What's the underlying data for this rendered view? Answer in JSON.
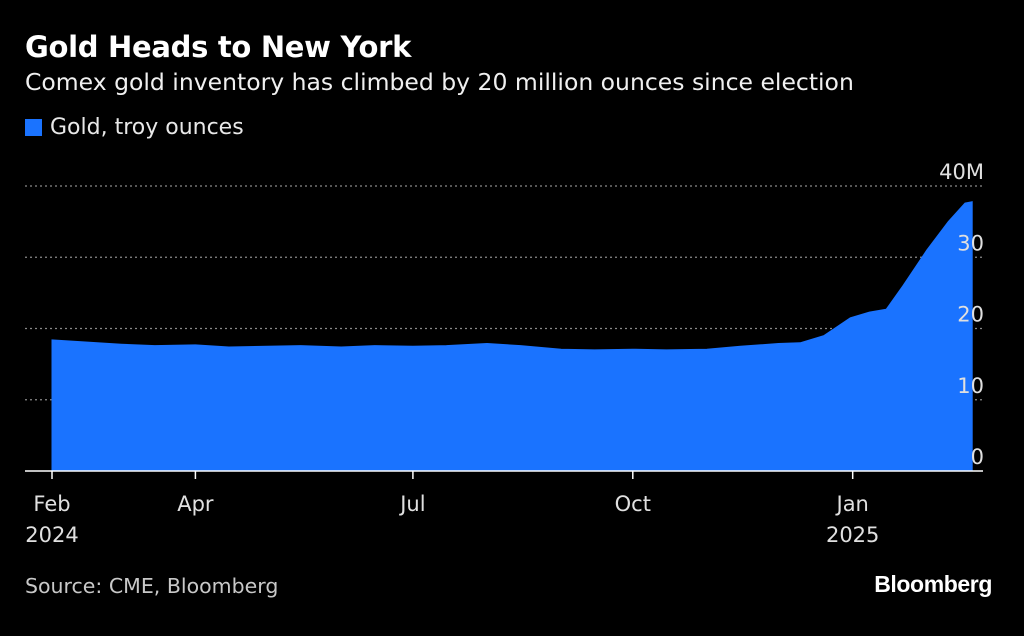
{
  "header": {
    "title": "Gold Heads to New York",
    "subtitle": "Comex gold inventory has climbed by 20 million ounces since election"
  },
  "footer": {
    "source": "Source: CME, Bloomberg",
    "brand": "Bloomberg"
  },
  "colors": {
    "background": "#000000",
    "series": "#1a73ff",
    "grid": "#8a8a8a",
    "text": "#ffffff",
    "muted_text": "#c8c8c8"
  },
  "chart_data": {
    "type": "area",
    "title": "Gold Heads to New York",
    "subtitle": "Comex gold inventory has climbed by 20 million ounces since election",
    "series": [
      {
        "name": "Gold, troy ounces",
        "color": "#1a73ff",
        "points": [
          {
            "date": "2024-02-01",
            "value": 18.4
          },
          {
            "date": "2024-02-15",
            "value": 18.1
          },
          {
            "date": "2024-03-01",
            "value": 17.8
          },
          {
            "date": "2024-03-15",
            "value": 17.6
          },
          {
            "date": "2024-04-01",
            "value": 17.7
          },
          {
            "date": "2024-04-15",
            "value": 17.4
          },
          {
            "date": "2024-05-01",
            "value": 17.5
          },
          {
            "date": "2024-05-15",
            "value": 17.6
          },
          {
            "date": "2024-06-01",
            "value": 17.4
          },
          {
            "date": "2024-06-15",
            "value": 17.6
          },
          {
            "date": "2024-07-01",
            "value": 17.5
          },
          {
            "date": "2024-07-15",
            "value": 17.6
          },
          {
            "date": "2024-08-01",
            "value": 17.9
          },
          {
            "date": "2024-08-15",
            "value": 17.6
          },
          {
            "date": "2024-09-01",
            "value": 17.1
          },
          {
            "date": "2024-09-15",
            "value": 17.0
          },
          {
            "date": "2024-10-01",
            "value": 17.1
          },
          {
            "date": "2024-10-15",
            "value": 17.0
          },
          {
            "date": "2024-11-01",
            "value": 17.1
          },
          {
            "date": "2024-11-15",
            "value": 17.5
          },
          {
            "date": "2024-12-01",
            "value": 17.9
          },
          {
            "date": "2024-12-10",
            "value": 18.0
          },
          {
            "date": "2024-12-20",
            "value": 19.0
          },
          {
            "date": "2024-12-31",
            "value": 21.5
          },
          {
            "date": "2025-01-08",
            "value": 22.3
          },
          {
            "date": "2025-01-15",
            "value": 22.7
          },
          {
            "date": "2025-01-22",
            "value": 26.0
          },
          {
            "date": "2025-02-01",
            "value": 31.0
          },
          {
            "date": "2025-02-10",
            "value": 35.0
          },
          {
            "date": "2025-02-17",
            "value": 37.6
          },
          {
            "date": "2025-02-20",
            "value": 37.8
          }
        ]
      }
    ],
    "x_axis": {
      "min": "2024-02-01",
      "max": "2025-03-12",
      "ticks": [
        {
          "date": "2024-02-01",
          "label": "Feb",
          "year": "2024"
        },
        {
          "date": "2024-04-01",
          "label": "Apr",
          "year": ""
        },
        {
          "date": "2024-07-01",
          "label": "Jul",
          "year": ""
        },
        {
          "date": "2024-10-01",
          "label": "Oct",
          "year": ""
        },
        {
          "date": "2025-01-01",
          "label": "Jan",
          "year": "2025"
        }
      ]
    },
    "y_axis": {
      "min": 0,
      "max": 40,
      "unit": "million troy ounces",
      "ticks": [
        {
          "value": 0,
          "label": "0"
        },
        {
          "value": 10,
          "label": "10"
        },
        {
          "value": 20,
          "label": "20"
        },
        {
          "value": 30,
          "label": "30"
        },
        {
          "value": 40,
          "label": "40M"
        }
      ],
      "gridlines": true,
      "side": "right"
    },
    "legend": {
      "position": "top-left",
      "entries": [
        "Gold, troy ounces"
      ]
    }
  }
}
